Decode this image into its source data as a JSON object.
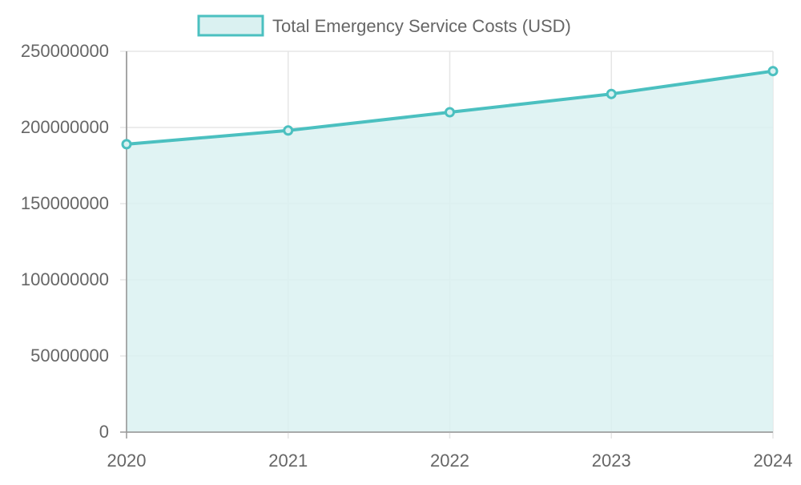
{
  "chart_data": {
    "type": "area",
    "title": "",
    "xlabel": "",
    "ylabel": "",
    "categories": [
      "2020",
      "2021",
      "2022",
      "2023",
      "2024"
    ],
    "series": [
      {
        "name": "Total Emergency Service Costs (USD)",
        "values": [
          189000000,
          198000000,
          210000000,
          222000000,
          237000000
        ]
      }
    ],
    "ylim": [
      0,
      250000000
    ],
    "yticks": [
      "0",
      "50000000",
      "100000000",
      "150000000",
      "200000000",
      "250000000"
    ],
    "grid": true,
    "legend": "top-center",
    "colors": {
      "line": "#4bc0c0",
      "fill": "#daf1f1",
      "grid": "#e5e5e5",
      "axis": "#999999"
    }
  }
}
